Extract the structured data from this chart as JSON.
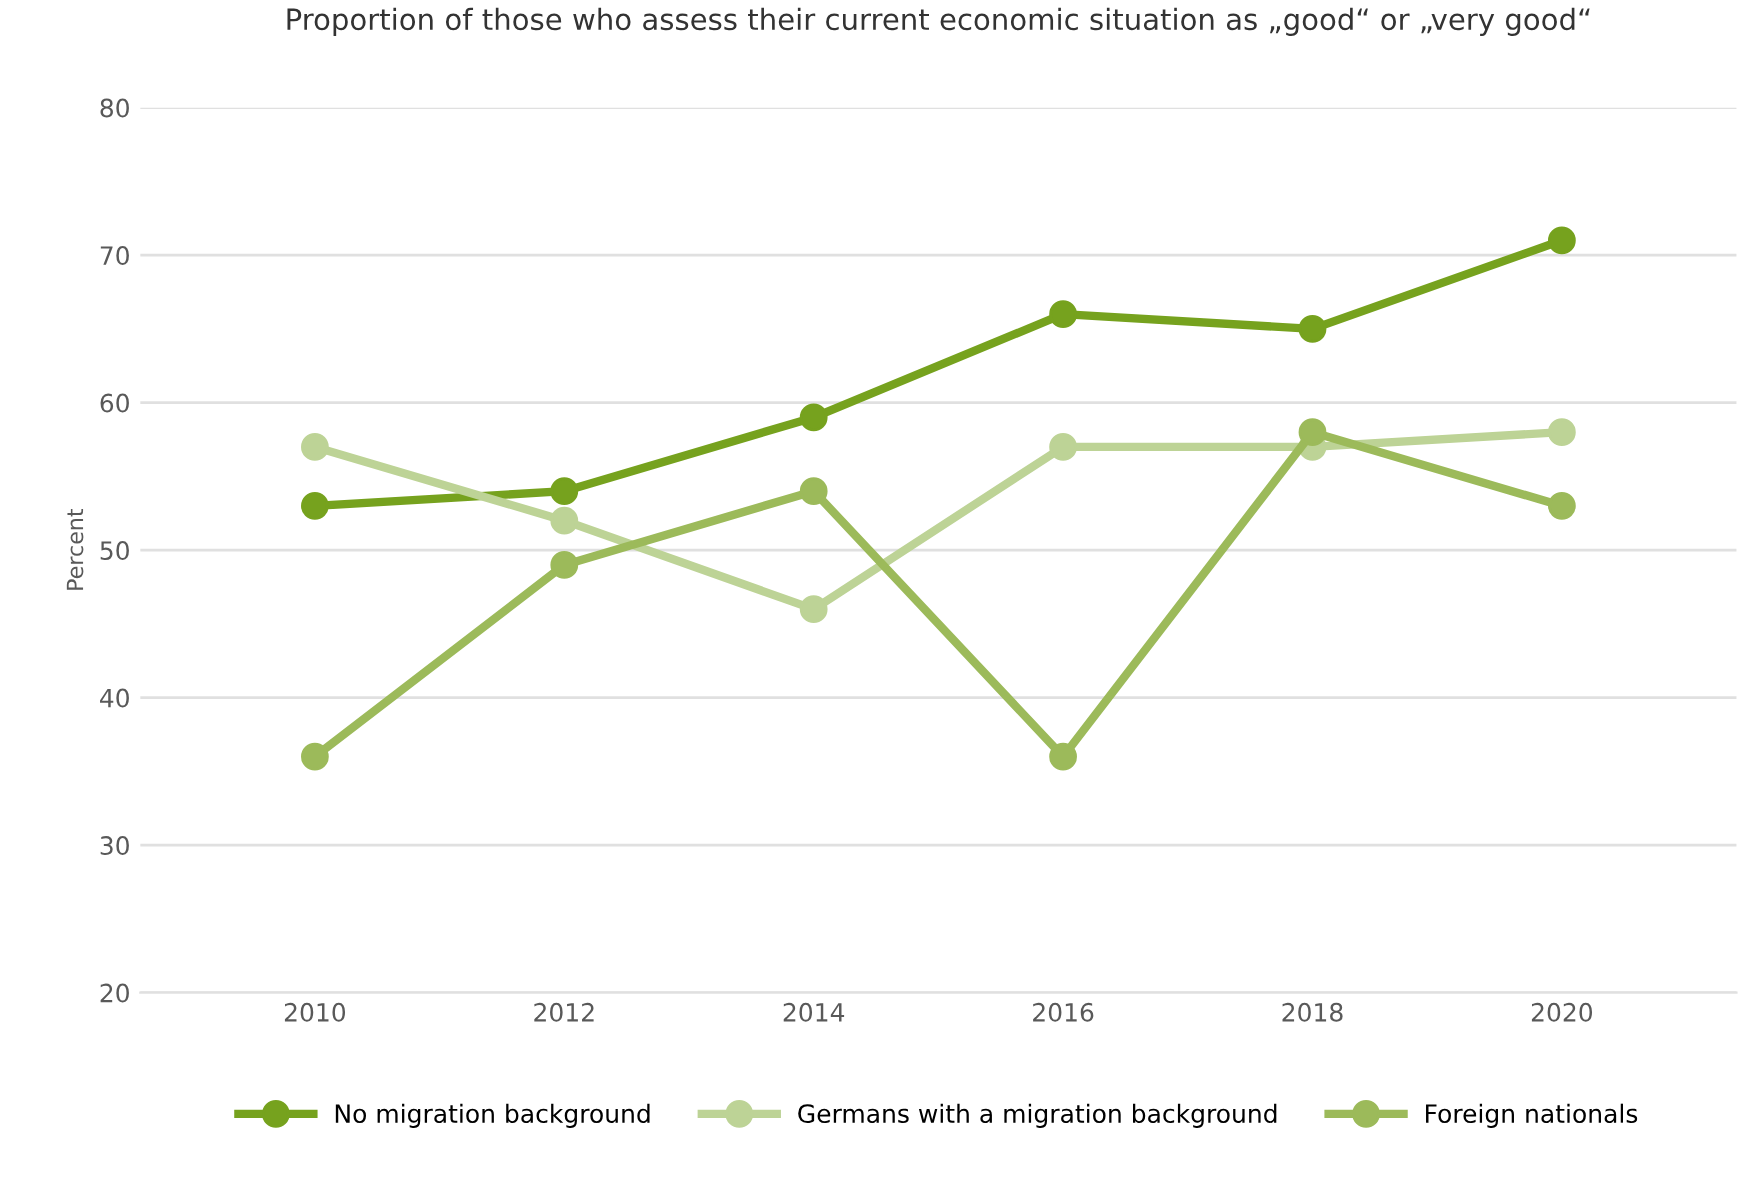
{
  "chart_data": {
    "type": "line",
    "title": "Proportion of those who assess their current economic situation as „good“ or „very good“",
    "ylabel": "Percent",
    "categories": [
      "2010",
      "2012",
      "2014",
      "2016",
      "2018",
      "2020"
    ],
    "series": [
      {
        "name": "No migration background",
        "color": "#76a21e",
        "values": [
          53,
          54,
          59,
          66,
          65,
          71
        ]
      },
      {
        "name": "Germans with a migration background",
        "color": "#bdd396",
        "values": [
          57,
          52,
          46,
          57,
          57,
          58
        ]
      },
      {
        "name": "Foreign nationals",
        "color": "#9cba5a",
        "values": [
          36,
          49,
          54,
          36,
          58,
          53
        ]
      }
    ],
    "ylim": [
      20,
      80
    ],
    "yticks": [
      20,
      30,
      40,
      50,
      60,
      70,
      80
    ],
    "grid": "y",
    "legend": "bottom",
    "marker": "circle",
    "line_style": "solid"
  }
}
